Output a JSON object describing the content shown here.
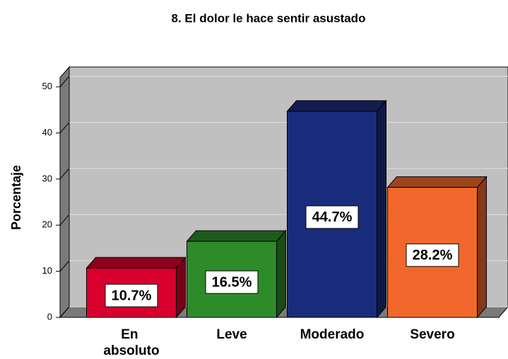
{
  "chart_data": {
    "type": "bar3d",
    "title": "8. El dolor le hace sentir asustado",
    "y_label": "Porcentaje",
    "categories": [
      "En absoluto",
      "Leve",
      "Moderado",
      "Severo"
    ],
    "values": [
      10.7,
      16.5,
      44.7,
      28.2
    ],
    "value_labels": [
      "10.7%",
      "16.5%",
      "44.7%",
      "28.2%"
    ],
    "colors": [
      "#d8002c",
      "#2e8b2a",
      "#1a2d7c",
      "#f2682c"
    ],
    "ylim": [
      0,
      52
    ],
    "yticks": [
      0,
      10,
      20,
      30,
      40,
      50
    ],
    "grid": true
  }
}
